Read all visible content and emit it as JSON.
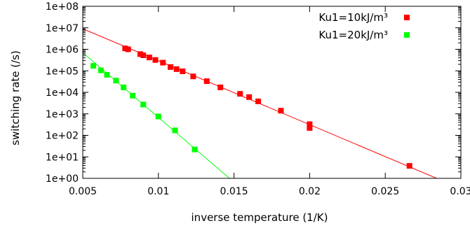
{
  "chart_data": {
    "type": "scatter",
    "xlabel": "inverse temperature (1/K)",
    "ylabel": "switching rate (/s)",
    "xlim": [
      0.005,
      0.03
    ],
    "ylim": [
      1,
      100000000
    ],
    "y_scale": "log",
    "grid": false,
    "legend_placement": "top-right",
    "x_ticks": [
      {
        "value": 0.005,
        "label": "0.005"
      },
      {
        "value": 0.01,
        "label": "0.01"
      },
      {
        "value": 0.015,
        "label": "0.015"
      },
      {
        "value": 0.02,
        "label": "0.02"
      },
      {
        "value": 0.025,
        "label": "0.025"
      },
      {
        "value": 0.03,
        "label": "0.03"
      }
    ],
    "y_ticks": [
      {
        "value": 1,
        "label": "1e+00"
      },
      {
        "value": 10,
        "label": "1e+01"
      },
      {
        "value": 100,
        "label": "1e+02"
      },
      {
        "value": 1000,
        "label": "1e+03"
      },
      {
        "value": 10000,
        "label": "1e+04"
      },
      {
        "value": 100000,
        "label": "1e+05"
      },
      {
        "value": 1000000,
        "label": "1e+06"
      },
      {
        "value": 10000000,
        "label": "1e+07"
      },
      {
        "value": 100000000,
        "label": "1e+08"
      }
    ],
    "series": [
      {
        "name": "Ku1=10kJ/m³",
        "color": "#ff0000",
        "fit_line": [
          [
            0.005,
            9000000
          ],
          [
            0.0284,
            1
          ]
        ],
        "points": [
          [
            0.0078,
            1100000
          ],
          [
            0.008,
            1000000
          ],
          [
            0.0088,
            600000
          ],
          [
            0.009,
            530000
          ],
          [
            0.0094,
            420000
          ],
          [
            0.0098,
            320000
          ],
          [
            0.0103,
            240000
          ],
          [
            0.0108,
            150000
          ],
          [
            0.0112,
            120000
          ],
          [
            0.0116,
            95000
          ],
          [
            0.0123,
            55000
          ],
          [
            0.0132,
            33000
          ],
          [
            0.0141,
            17000
          ],
          [
            0.0154,
            8500
          ],
          [
            0.016,
            6000
          ],
          [
            0.0166,
            3800
          ],
          [
            0.0181,
            1400
          ],
          [
            0.02,
            330
          ],
          [
            0.02,
            220
          ],
          [
            0.0266,
            3.8
          ]
        ]
      },
      {
        "name": "Ku1=20kJ/m³",
        "color": "#00ff00",
        "fit_line": [
          [
            0.005,
            700000
          ],
          [
            0.0147,
            1
          ]
        ],
        "points": [
          [
            0.0057,
            170000
          ],
          [
            0.0062,
            105000
          ],
          [
            0.0066,
            65000
          ],
          [
            0.0072,
            35000
          ],
          [
            0.0077,
            17000
          ],
          [
            0.0083,
            7000
          ],
          [
            0.009,
            2700
          ],
          [
            0.01,
            750
          ],
          [
            0.0111,
            170
          ],
          [
            0.0124,
            22
          ]
        ]
      }
    ]
  },
  "colors": {
    "series_1": "#ff0000",
    "series_2": "#00ff00",
    "axes": "#000000"
  }
}
